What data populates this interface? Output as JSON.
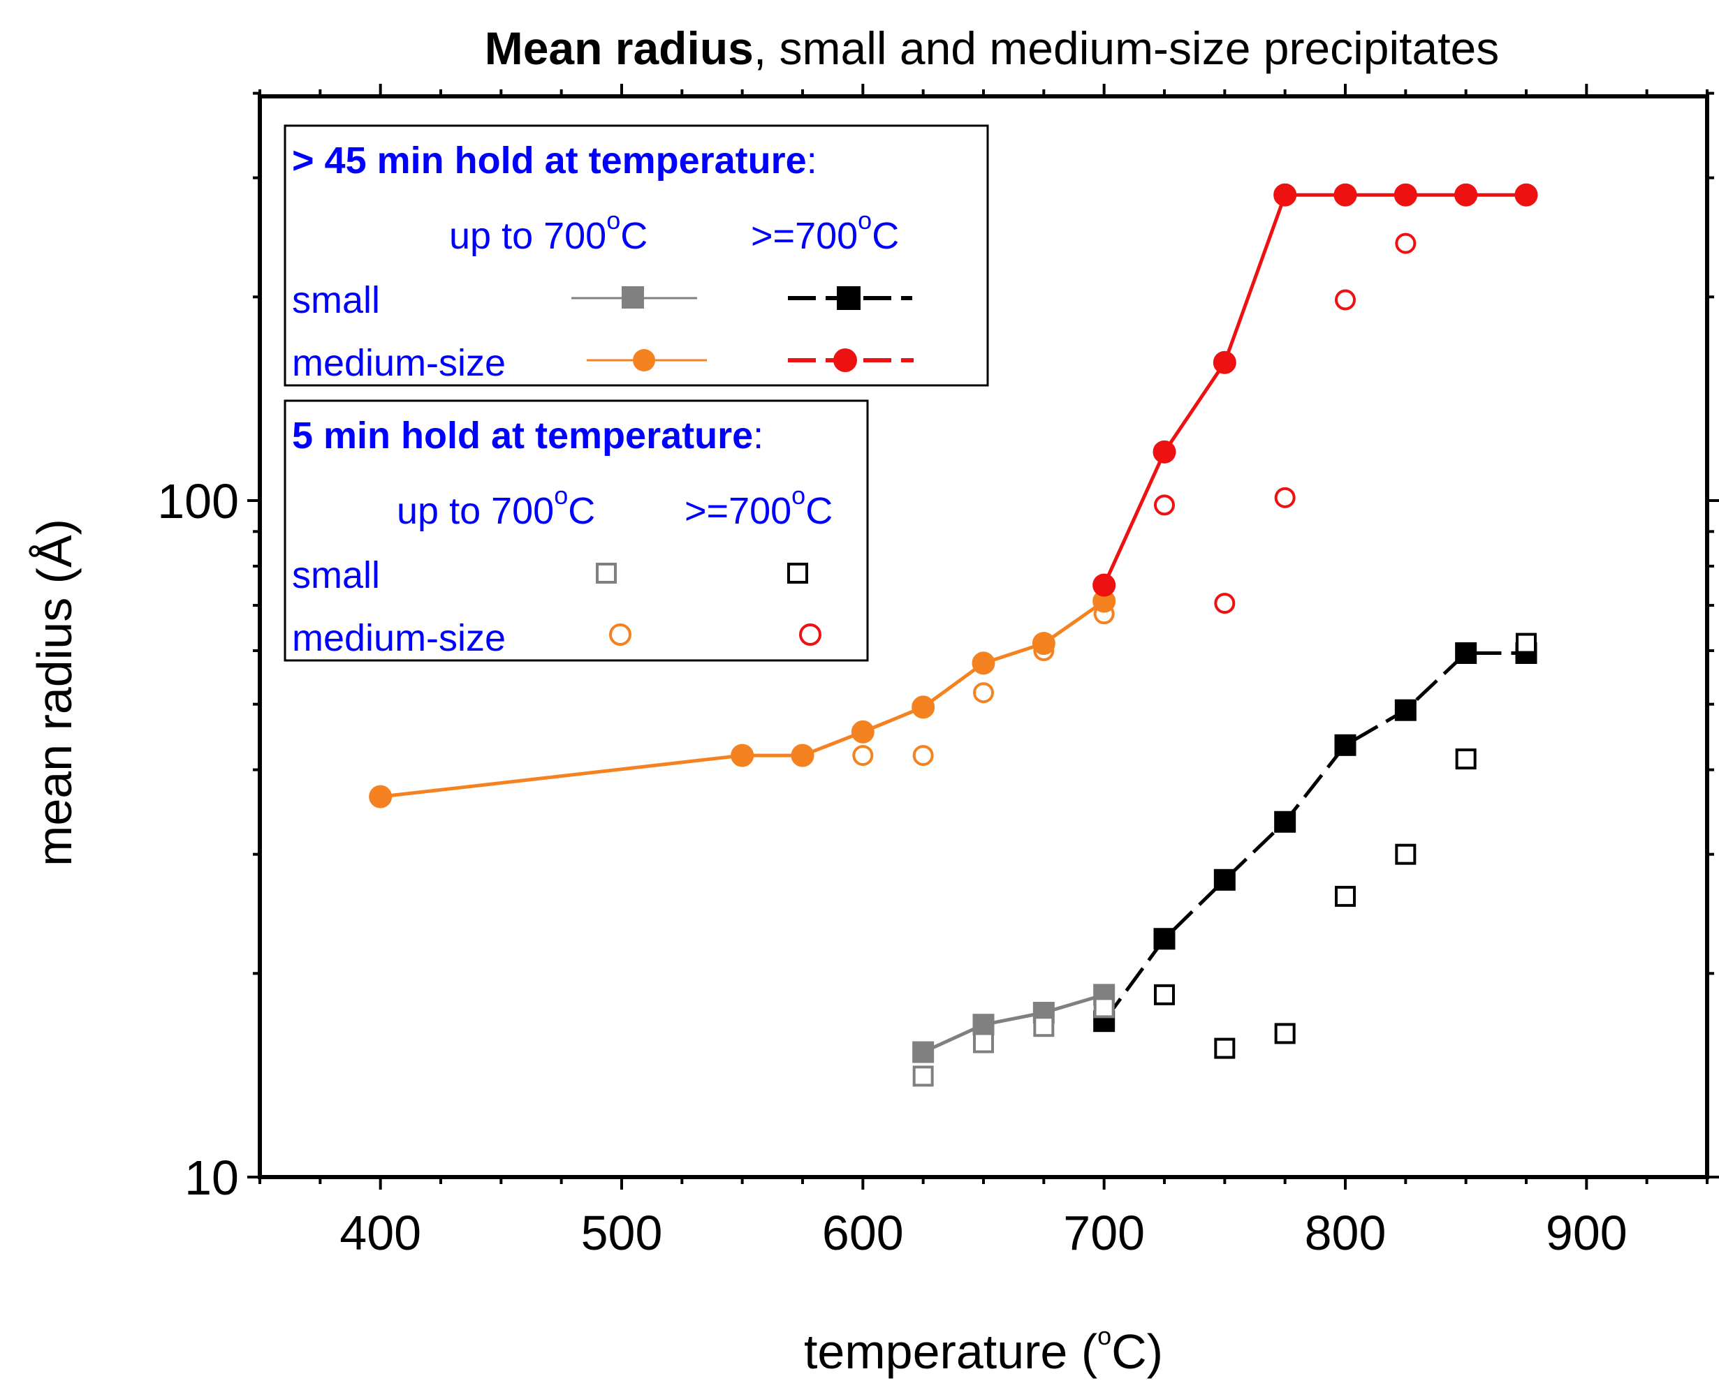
{
  "chart_data": {
    "type": "scatter",
    "title_bold": "Mean radius",
    "title_rest": ", small and medium-size precipitates",
    "xlabel_pre": "temperature (",
    "xlabel_sup": "o",
    "xlabel_post": "C)",
    "ylabel": "mean radius (Å)",
    "xlim": [
      350,
      950
    ],
    "ylim": [
      10,
      400
    ],
    "yscale": "log",
    "x_ticks": [
      400,
      500,
      600,
      700,
      800,
      900
    ],
    "x_tick_labels": [
      "400",
      "500",
      "600",
      "700",
      "800",
      "900"
    ],
    "y_ticks": [
      10,
      100
    ],
    "y_tick_labels": [
      "10",
      "100"
    ],
    "legend": {
      "long": {
        "header": "> 45 min hold at temperature",
        "colon": ":",
        "col1_pre": "up to 700",
        "col1_sup": "o",
        "col1_post": "C",
        "col2_pre": ">=700",
        "col2_sup": "o",
        "col2_post": "C",
        "row_small": "small",
        "row_medium": "medium-size"
      },
      "short": {
        "header": "5 min hold at temperature",
        "colon": ":",
        "col1_pre": "up to 700",
        "col1_sup": "o",
        "col1_post": "C",
        "col2_pre": ">=700",
        "col2_sup": "o",
        "col2_post": "C",
        "row_small": "small",
        "row_medium": "medium-size"
      }
    },
    "series": [
      {
        "name": "small, >45 min, up to 700°C",
        "marker": "square",
        "filled": true,
        "color": "#808080",
        "line": true,
        "x": [
          625,
          650,
          675,
          700
        ],
        "y": [
          15.3,
          16.8,
          17.5,
          18.6
        ]
      },
      {
        "name": "small, >45 min, >=700°C",
        "marker": "square",
        "filled": true,
        "color": "#000000",
        "line": true,
        "dashed": true,
        "x": [
          700,
          725,
          750,
          775,
          800,
          825,
          850,
          875
        ],
        "y": [
          17.0,
          22.5,
          27.5,
          33.5,
          43.5,
          49.0,
          59.5,
          59.5
        ]
      },
      {
        "name": "medium-size, >45 min, up to 700°C",
        "marker": "circle",
        "filled": true,
        "color": "#f58220",
        "line": true,
        "x": [
          400,
          550,
          575,
          600,
          625,
          650,
          675,
          700
        ],
        "y": [
          36.5,
          42.0,
          42.0,
          45.5,
          49.5,
          57.5,
          61.5,
          71.0
        ]
      },
      {
        "name": "medium-size, >45 min, >=700°C",
        "marker": "circle",
        "filled": true,
        "color": "#ee1111",
        "line": true,
        "x": [
          700,
          725,
          750,
          775,
          800,
          825,
          850,
          875
        ],
        "y": [
          75.0,
          118.0,
          160.0,
          283.0,
          283.0,
          283.0,
          283.0,
          283.0
        ]
      },
      {
        "name": "small, 5 min, up to 700°C",
        "marker": "square",
        "filled": false,
        "color": "#808080",
        "line": false,
        "x": [
          625,
          650,
          675,
          700
        ],
        "y": [
          14.1,
          15.8,
          16.7,
          17.8
        ]
      },
      {
        "name": "small, 5 min, >=700°C",
        "marker": "square",
        "filled": false,
        "color": "#000000",
        "line": false,
        "x": [
          725,
          750,
          775,
          800,
          825,
          850,
          875
        ],
        "y": [
          18.6,
          15.5,
          16.3,
          26.0,
          30.0,
          41.5,
          61.5
        ]
      },
      {
        "name": "medium-size, 5 min, up to 700°C",
        "marker": "circle",
        "filled": false,
        "color": "#f58220",
        "line": false,
        "x": [
          600,
          625,
          650,
          675,
          700
        ],
        "y": [
          42.0,
          42.0,
          52.0,
          60.0,
          68.0
        ]
      },
      {
        "name": "medium-size, 5 min, >=700°C",
        "marker": "circle",
        "filled": false,
        "color": "#ee1111",
        "line": false,
        "x": [
          725,
          750,
          775,
          800,
          825
        ],
        "y": [
          98.5,
          70.5,
          101.0,
          198.0,
          240.0
        ]
      }
    ]
  }
}
